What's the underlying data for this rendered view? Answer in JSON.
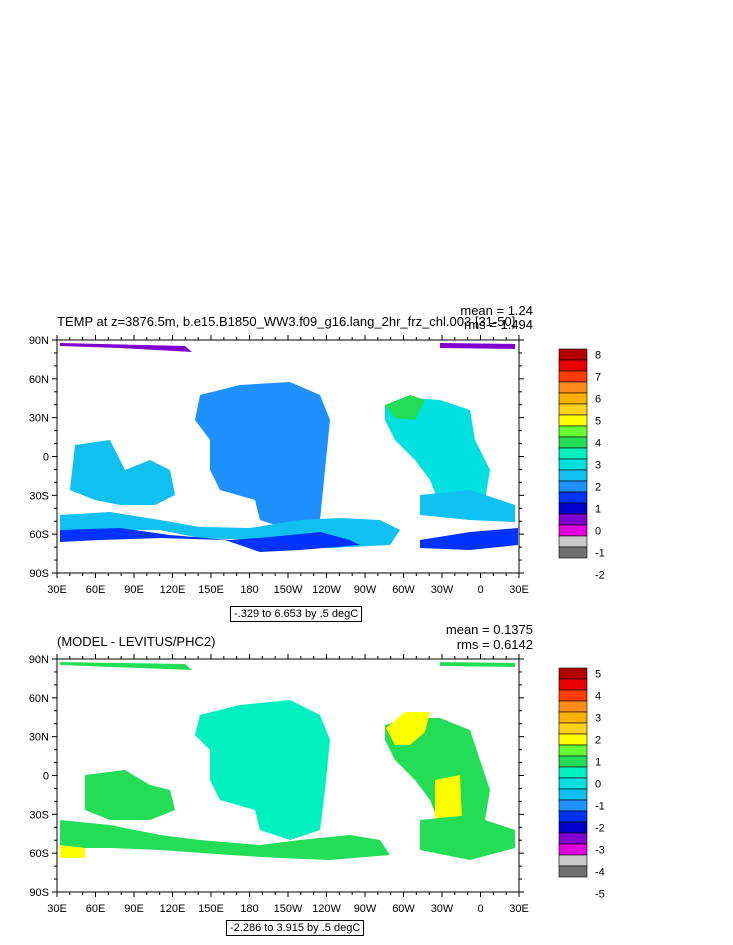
{
  "chart_data": [
    {
      "type": "heatmap",
      "title": "TEMP at z=3876.5m, b.e15.B1850_WW3.f09_g16.lang_2hr_frz_chl.003 [31-50]",
      "stats": {
        "mean": "mean = 1.24",
        "rms": "rms = 1.494"
      },
      "x_ticks": [
        "30E",
        "60E",
        "90E",
        "120E",
        "150E",
        "180",
        "150W",
        "120W",
        "90W",
        "60W",
        "30W",
        "0",
        "30E"
      ],
      "y_ticks": [
        "90N",
        "60N",
        "30N",
        "0",
        "30S",
        "60S",
        "90S"
      ],
      "colorbar": {
        "levels": [
          "8",
          "7",
          "6",
          "5",
          "4",
          "3",
          "2",
          "1",
          "0",
          "-1",
          "-2"
        ],
        "colors": [
          "#b30000",
          "#e60000",
          "#ff3c00",
          "#ff8c1a",
          "#ffb000",
          "#ffd11a",
          "#ffff00",
          "#66ff33",
          "#22dd55",
          "#00f0c0",
          "#00e0e0",
          "#10c0f0",
          "#1e90ff",
          "#0033ff",
          "#0000cc",
          "#8000d0",
          "#e000e0",
          "#c8c8c8",
          "#707070"
        ]
      },
      "contour_info": "-.329 to 6.653 by .5 degC"
    },
    {
      "type": "heatmap",
      "title": "(MODEL - LEVITUS/PHC2)",
      "stats": {
        "mean": "mean = 0.1375",
        "rms": "rms = 0.6142"
      },
      "x_ticks": [
        "30E",
        "60E",
        "90E",
        "120E",
        "150E",
        "180",
        "150W",
        "120W",
        "90W",
        "60W",
        "30W",
        "0",
        "30E"
      ],
      "y_ticks": [
        "90N",
        "60N",
        "30N",
        "0",
        "30S",
        "60S",
        "90S"
      ],
      "colorbar": {
        "levels": [
          "5",
          "4",
          "3",
          "2",
          "1",
          "0",
          "-1",
          "-2",
          "-3",
          "-4",
          "-5"
        ],
        "colors": [
          "#b30000",
          "#e60000",
          "#ff3c00",
          "#ff8c1a",
          "#ffb000",
          "#ffd11a",
          "#ffff00",
          "#66ff33",
          "#22dd55",
          "#00f0c0",
          "#00e0e0",
          "#10c0f0",
          "#1e90ff",
          "#0033ff",
          "#0000cc",
          "#8000d0",
          "#e000e0",
          "#c8c8c8",
          "#707070"
        ]
      },
      "contour_info": "-2.286 to 3.915 by .5 degC"
    }
  ]
}
